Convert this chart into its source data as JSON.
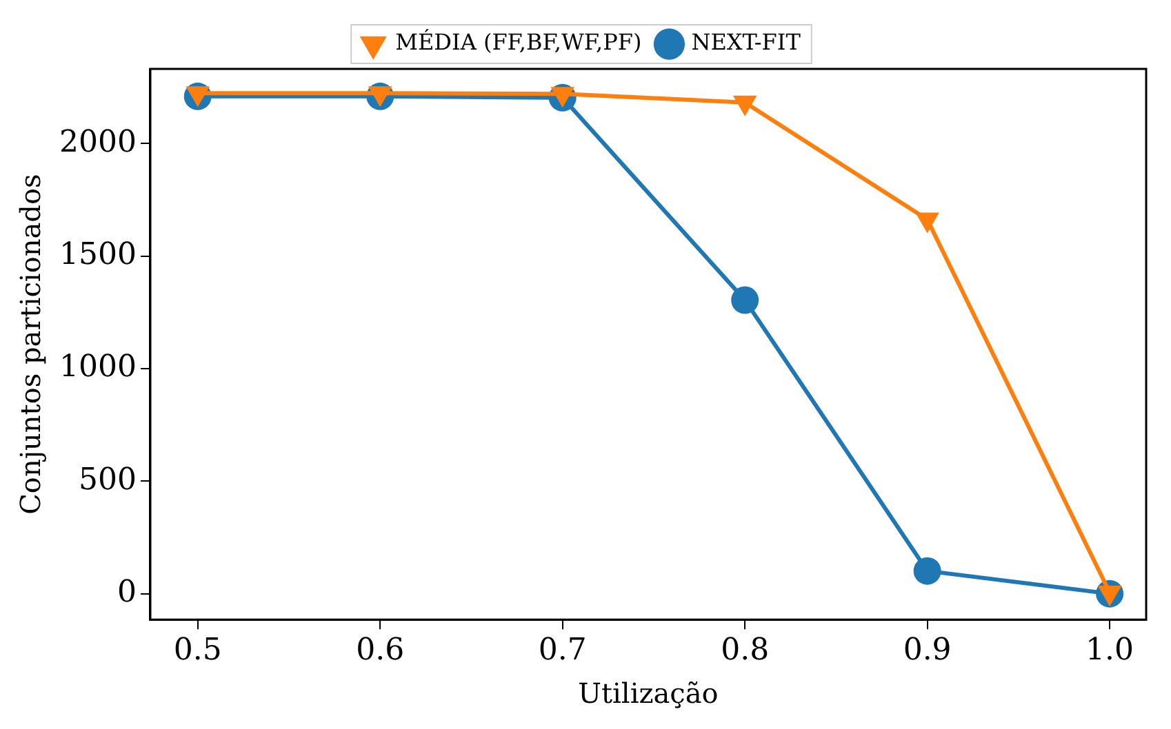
{
  "chart_data": {
    "type": "line",
    "xlabel": "Utilização",
    "ylabel": "Conjuntos particionados",
    "x": [
      0.5,
      0.6,
      0.7,
      0.8,
      0.9,
      1.0
    ],
    "series": [
      {
        "name": "NEXT-FIT",
        "color": "#1f77b4",
        "marker": "circle",
        "values": [
          2209,
          2209,
          2203,
          1304,
          101,
          0
        ]
      },
      {
        "name": "MÉDIA (FF,BF,WF,PF)",
        "color": "#ff7f0e",
        "marker": "triangle",
        "values": [
          2223,
          2223,
          2220,
          2182,
          1662,
          5
        ]
      }
    ],
    "xlim": [
      0.474,
      1.02
    ],
    "xticks": [
      {
        "value": 0.5,
        "label": "0.5"
      },
      {
        "value": 0.6,
        "label": "0.6"
      },
      {
        "value": 0.7,
        "label": "0.7"
      },
      {
        "value": 0.8,
        "label": "0.8"
      },
      {
        "value": 0.9,
        "label": "0.9"
      },
      {
        "value": 1.0,
        "label": "1.0"
      }
    ],
    "ylim": [
      -115,
      2331
    ],
    "yticks": [
      0,
      500,
      1000,
      1500,
      2000
    ],
    "grid": false,
    "legend": "top",
    "line_style": "solid"
  }
}
